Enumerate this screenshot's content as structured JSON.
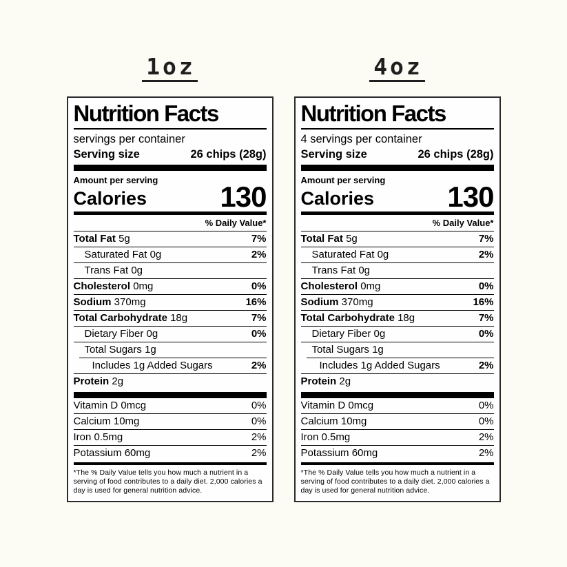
{
  "page": {
    "background_color": "#fcfbf4",
    "label_background_color": "#fefefe",
    "text_color": "#000000"
  },
  "labels": [
    {
      "heading": "1oz",
      "title": "Nutrition Facts",
      "servings_per_container": "servings per container",
      "serving_size_label": "Serving size",
      "serving_size_value": "26 chips (28g)",
      "amount_per_serving": "Amount per serving",
      "calories_label": "Calories",
      "calories_value": "130",
      "daily_value_header": "% Daily Value*",
      "rows": [
        {
          "name": "Total Fat",
          "value": "5g",
          "dv": "7%"
        },
        {
          "name": "Saturated Fat",
          "value": "0g",
          "dv": "2%"
        },
        {
          "name": "Trans Fat",
          "value": "0g",
          "dv": ""
        },
        {
          "name": "Cholesterol",
          "value": "0mg",
          "dv": "0%"
        },
        {
          "name": "Sodium",
          "value": "370mg",
          "dv": "16%"
        },
        {
          "name": "Total Carbohydrate",
          "value": "18g",
          "dv": "7%"
        },
        {
          "name": "Dietary Fiber",
          "value": "0g",
          "dv": "0%"
        },
        {
          "name": "Total Sugars",
          "value": "1g",
          "dv": ""
        },
        {
          "name": "Includes 1g Added Sugars",
          "value": "",
          "dv": "2%"
        },
        {
          "name": "Protein",
          "value": "2g",
          "dv": ""
        }
      ],
      "vitamins": [
        {
          "name": "Vitamin D",
          "value": "0mcg",
          "dv": "0%"
        },
        {
          "name": "Calcium",
          "value": "10mg",
          "dv": "0%"
        },
        {
          "name": "Iron",
          "value": "0.5mg",
          "dv": "2%"
        },
        {
          "name": "Potassium",
          "value": "60mg",
          "dv": "2%"
        }
      ],
      "footnote": "*The % Daily Value tells you how much a nutrient in a serving of food contributes to a daily diet. 2,000 calories a day is used for general nutrition advice."
    },
    {
      "heading": "4oz",
      "title": "Nutrition Facts",
      "servings_per_container": "4 servings per container",
      "serving_size_label": "Serving size",
      "serving_size_value": "26 chips (28g)",
      "amount_per_serving": "Amount per serving",
      "calories_label": "Calories",
      "calories_value": "130",
      "daily_value_header": "% Daily Value*",
      "rows": [
        {
          "name": "Total Fat",
          "value": "5g",
          "dv": "7%"
        },
        {
          "name": "Saturated Fat",
          "value": "0g",
          "dv": "2%"
        },
        {
          "name": "Trans Fat",
          "value": "0g",
          "dv": ""
        },
        {
          "name": "Cholesterol",
          "value": "0mg",
          "dv": "0%"
        },
        {
          "name": "Sodium",
          "value": "370mg",
          "dv": "16%"
        },
        {
          "name": "Total Carbohydrate",
          "value": "18g",
          "dv": "7%"
        },
        {
          "name": "Dietary Fiber",
          "value": "0g",
          "dv": "0%"
        },
        {
          "name": "Total Sugars",
          "value": "1g",
          "dv": ""
        },
        {
          "name": "Includes 1g Added Sugars",
          "value": "",
          "dv": "2%"
        },
        {
          "name": "Protein",
          "value": "2g",
          "dv": ""
        }
      ],
      "vitamins": [
        {
          "name": "Vitamin D",
          "value": "0mcg",
          "dv": "0%"
        },
        {
          "name": "Calcium",
          "value": "10mg",
          "dv": "0%"
        },
        {
          "name": "Iron",
          "value": "0.5mg",
          "dv": "2%"
        },
        {
          "name": "Potassium",
          "value": "60mg",
          "dv": "2%"
        }
      ],
      "footnote": "*The % Daily Value tells you how much a nutrient in a serving of food contributes to a daily diet. 2,000 calories a day is used for general nutrition advice."
    }
  ]
}
